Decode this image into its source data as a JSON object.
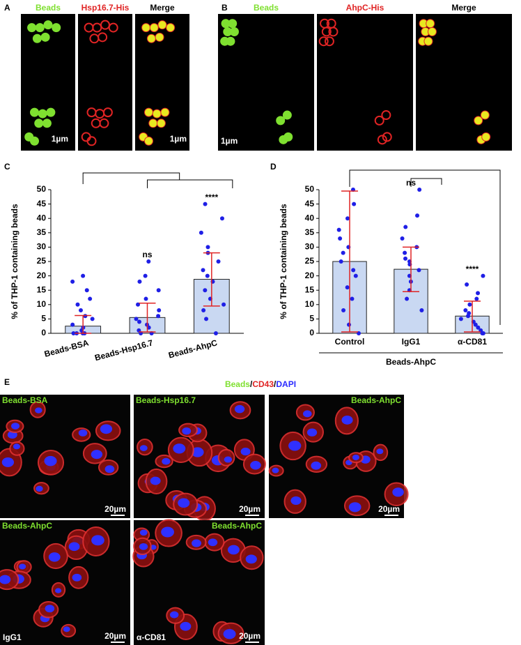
{
  "panel_a": {
    "label": "A",
    "headers": [
      "Beads",
      "Hsp16.7-His",
      "Merge"
    ],
    "scale_labels": [
      "1µm",
      "1µm"
    ]
  },
  "panel_b": {
    "label": "B",
    "headers": [
      "Beads",
      "AhpC-His",
      "Merge"
    ],
    "scale_labels": [
      "1µm"
    ]
  },
  "chart_data": [
    {
      "type": "bar",
      "panel_label": "C",
      "ylabel": "% of THP-1 containing beads",
      "categories": [
        "Beads-BSA",
        "Beads-Hsp16.7",
        "Beads-AhpC"
      ],
      "values": [
        2.5,
        5.5,
        18.8
      ],
      "error_low": [
        0,
        0.5,
        9.5
      ],
      "error_high": [
        6.2,
        10.5,
        28
      ],
      "points": [
        [
          0,
          0,
          0,
          0,
          1,
          2,
          3,
          5,
          6,
          8,
          10,
          12,
          15,
          18,
          20
        ],
        [
          0,
          0,
          1,
          2,
          3,
          4,
          5,
          6,
          8,
          10,
          12,
          15,
          18,
          20,
          25
        ],
        [
          0,
          5,
          8,
          10,
          12,
          15,
          18,
          20,
          22,
          25,
          28,
          30,
          35,
          40,
          45
        ]
      ],
      "significance": [
        null,
        "ns",
        "****"
      ],
      "ylim": [
        0,
        50
      ],
      "yticks": [
        0,
        5,
        10,
        15,
        20,
        25,
        30,
        35,
        40,
        45,
        50
      ],
      "color": "#c9d8f2",
      "point_color": "#1f1fe6",
      "error_color": "#e02424"
    },
    {
      "type": "bar",
      "panel_label": "D",
      "ylabel": "% of THP-1 containing beads",
      "categories": [
        "Control",
        "IgG1",
        "α-CD81"
      ],
      "values": [
        25,
        22.3,
        6
      ],
      "error_low": [
        0.5,
        14.5,
        0.5
      ],
      "error_high": [
        49.5,
        30,
        11.2
      ],
      "points": [
        [
          0,
          3,
          8,
          12,
          16,
          20,
          22,
          25,
          28,
          30,
          33,
          36,
          40,
          45,
          50
        ],
        [
          8,
          12,
          15,
          18,
          20,
          22,
          24,
          25,
          26,
          28,
          30,
          33,
          37,
          41,
          50
        ],
        [
          0,
          0,
          1,
          2,
          3,
          4,
          5,
          6,
          7,
          8,
          10,
          12,
          14,
          17,
          20
        ]
      ],
      "significance": [
        null,
        "ns",
        "****"
      ],
      "group_label": "Beads-AhpC",
      "ylim": [
        0,
        50
      ],
      "yticks": [
        0,
        5,
        10,
        15,
        20,
        25,
        30,
        35,
        40,
        45,
        50
      ],
      "color": "#c9d8f2",
      "point_color": "#1f1fe6",
      "error_color": "#e02424"
    }
  ],
  "panel_e": {
    "label": "E",
    "title_parts": [
      "Beads",
      "/",
      "CD43",
      "/",
      "DAPI"
    ],
    "images": [
      {
        "label": "Beads-BSA",
        "scale": "20µm"
      },
      {
        "label": "Beads-Hsp16.7",
        "scale": "20µm"
      },
      {
        "label": "Beads-AhpC",
        "scale": "20µm"
      },
      {
        "label": "Beads-AhpC",
        "scale": "20µm",
        "treatment": "IgG1"
      },
      {
        "label": "Beads-AhpC",
        "scale": "20µm",
        "treatment": "α-CD81"
      }
    ]
  }
}
